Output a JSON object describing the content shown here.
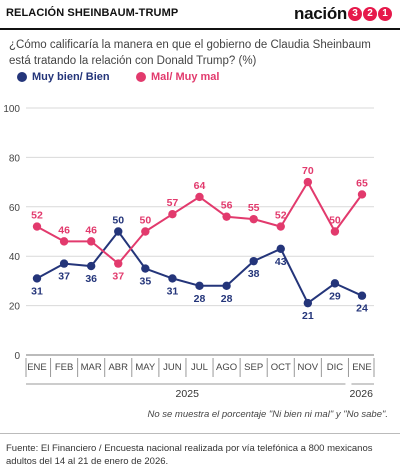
{
  "header": {
    "title": "RELACIÓN SHEINBAUM-TRUMP",
    "logo_text": "nación",
    "logo_digits": [
      "3",
      "2",
      "1"
    ]
  },
  "question": "¿Cómo calificaría la manera en que el gobierno de Claudia Sheinbaum está tratando la relación con Donald Trump? (%)",
  "note": "No se muestra el porcentaje \"Ni bien ni mal\" y \"No sabe\".",
  "source": "Fuente: El Financiero / Encuesta nacional realizada por vía telefónica a 800 mexicanos adultos del 14 al 21 de enero de 2026.",
  "colors": {
    "navy": "#24357a",
    "pink": "#e23a6d",
    "grid": "#d9d9d9",
    "axis": "#777777"
  },
  "chart_data": {
    "type": "line",
    "categories": [
      "ENE",
      "FEB",
      "MAR",
      "ABR",
      "MAY",
      "JUN",
      "JUL",
      "AGO",
      "SEP",
      "OCT",
      "NOV",
      "DIC",
      "ENE"
    ],
    "year_labels": [
      "2025",
      "2026"
    ],
    "ylim": [
      0,
      100
    ],
    "yticks": [
      0,
      20,
      40,
      60,
      80,
      100
    ],
    "grid": true,
    "legend_placement": "top-left",
    "series": [
      {
        "name": "Muy bien/ Bien",
        "color": "#24357a",
        "values": [
          31,
          37,
          36,
          50,
          35,
          31,
          28,
          28,
          38,
          43,
          21,
          29,
          24
        ]
      },
      {
        "name": "Mal/ Muy mal",
        "color": "#e23a6d",
        "values": [
          52,
          46,
          46,
          37,
          50,
          57,
          64,
          56,
          55,
          52,
          70,
          50,
          65
        ]
      }
    ]
  }
}
